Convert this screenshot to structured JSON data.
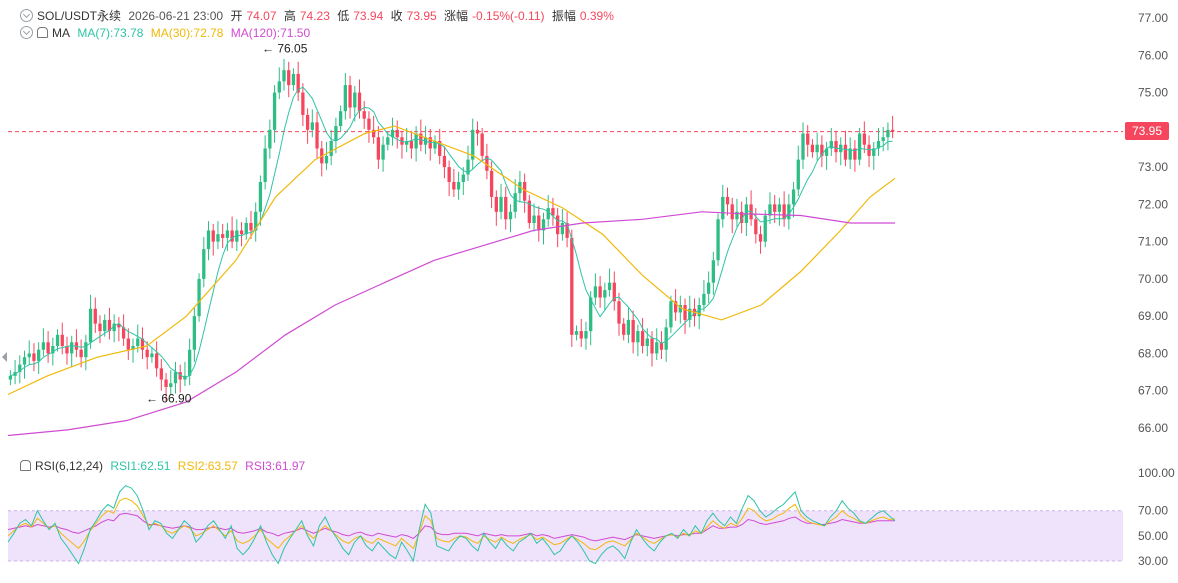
{
  "header": {
    "symbol": "SOL/USDT永续",
    "datetime": "2026-06-21 23:00",
    "open_label": "开",
    "open": "74.07",
    "high_label": "高",
    "high": "74.23",
    "low_label": "低",
    "low": "73.94",
    "close_label": "收",
    "close": "73.95",
    "change_label": "涨幅",
    "change": "-0.15%(-0.11)",
    "amplitude_label": "振幅",
    "amplitude": "0.39%"
  },
  "ma_legend": {
    "label": "MA",
    "ma7": "MA(7):73.78",
    "ma30": "MA(30):72.78",
    "ma120": "MA(120):71.50"
  },
  "rsi_legend": {
    "label": "RSI(6,12,24)",
    "rsi1": "RSI1:62.51",
    "rsi2": "RSI2:63.57",
    "rsi3": "RSI3:61.97"
  },
  "current_price": "73.95",
  "colors": {
    "up": "#2ebd85",
    "down": "#f6465d",
    "ma7": "#2ec4a6",
    "ma30": "#f0b90b",
    "ma120": "#d04bd3",
    "rsi_band": "#efe3fb"
  },
  "chart_data": {
    "type": "candlestick",
    "price_axis": {
      "ticks": [
        "77.00",
        "76.00",
        "75.00",
        "74.00",
        "73.00",
        "72.00",
        "71.00",
        "70.00",
        "69.00",
        "68.00",
        "67.00",
        "66.00"
      ],
      "range": [
        65.6,
        77.4
      ]
    },
    "annotations": [
      {
        "text": "76.05",
        "value": 76.05,
        "type": "high"
      },
      {
        "text": "66.90",
        "value": 66.9,
        "type": "low"
      }
    ],
    "closes": [
      67.4,
      67.5,
      67.7,
      67.9,
      68.0,
      67.8,
      68.1,
      68.3,
      68.0,
      68.2,
      68.5,
      68.2,
      68.0,
      68.3,
      68.1,
      67.9,
      68.3,
      69.2,
      68.8,
      68.6,
      68.9,
      68.6,
      68.8,
      68.7,
      68.4,
      68.1,
      68.2,
      68.4,
      68.1,
      67.9,
      68.0,
      67.6,
      67.3,
      67.1,
      67.2,
      67.5,
      67.3,
      67.4,
      68.1,
      69.0,
      70.0,
      70.8,
      71.3,
      71.0,
      71.2,
      71.1,
      71.3,
      71.0,
      71.3,
      71.2,
      71.5,
      71.3,
      71.8,
      72.6,
      73.5,
      74.0,
      75.0,
      75.3,
      75.6,
      75.2,
      75.5,
      75.0,
      74.4,
      74.0,
      74.2,
      73.5,
      73.1,
      73.3,
      73.7,
      74.1,
      74.5,
      75.2,
      74.6,
      75.0,
      74.5,
      74.3,
      74.0,
      73.8,
      73.2,
      73.6,
      73.8,
      74.0,
      73.8,
      73.6,
      73.7,
      73.5,
      73.9,
      73.6,
      73.8,
      73.5,
      73.7,
      73.3,
      73.0,
      72.6,
      72.4,
      72.6,
      72.8,
      73.2,
      74.0,
      73.9,
      73.3,
      72.9,
      72.2,
      71.8,
      72.2,
      71.6,
      71.8,
      72.3,
      72.6,
      72.1,
      71.5,
      71.7,
      71.3,
      71.6,
      71.9,
      71.7,
      71.2,
      71.5,
      71.1,
      68.5,
      68.6,
      68.4,
      68.6,
      69.5,
      69.8,
      69.5,
      69.7,
      69.9,
      69.4,
      68.8,
      68.5,
      68.9,
      68.3,
      68.6,
      68.2,
      68.4,
      68.0,
      68.3,
      68.1,
      68.7,
      69.4,
      69.1,
      69.3,
      68.9,
      69.2,
      69.0,
      69.3,
      69.6,
      69.9,
      70.5,
      71.6,
      72.2,
      72.0,
      71.6,
      71.8,
      71.5,
      72.0,
      71.6,
      71.2,
      71.0,
      71.7,
      72.0,
      71.8,
      72.0,
      71.6,
      72.0,
      72.4,
      73.2,
      73.9,
      73.6,
      73.4,
      73.6,
      73.3,
      73.5,
      73.7,
      73.4,
      73.6,
      73.2,
      73.5,
      73.2,
      73.9,
      73.6,
      73.3,
      73.5,
      73.7,
      73.8,
      74.0,
      73.95
    ],
    "ma30_path": [
      [
        0,
        66.9
      ],
      [
        40,
        67.4
      ],
      [
        90,
        67.9
      ],
      [
        140,
        68.2
      ],
      [
        180,
        69.0
      ],
      [
        230,
        70.5
      ],
      [
        270,
        72.2
      ],
      [
        310,
        73.2
      ],
      [
        360,
        73.9
      ],
      [
        390,
        74.1
      ],
      [
        430,
        73.7
      ],
      [
        470,
        73.3
      ],
      [
        520,
        72.4
      ],
      [
        560,
        71.9
      ],
      [
        600,
        71.2
      ],
      [
        640,
        70.1
      ],
      [
        680,
        69.2
      ],
      [
        720,
        68.9
      ],
      [
        760,
        69.3
      ],
      [
        800,
        70.2
      ],
      [
        840,
        71.3
      ],
      [
        870,
        72.2
      ],
      [
        895,
        72.7
      ]
    ],
    "ma120_path": [
      [
        0,
        65.8
      ],
      [
        60,
        65.95
      ],
      [
        120,
        66.2
      ],
      [
        180,
        66.7
      ],
      [
        230,
        67.5
      ],
      [
        280,
        68.5
      ],
      [
        330,
        69.3
      ],
      [
        380,
        69.9
      ],
      [
        430,
        70.5
      ],
      [
        480,
        70.9
      ],
      [
        530,
        71.3
      ],
      [
        580,
        71.5
      ],
      [
        640,
        71.6
      ],
      [
        700,
        71.8
      ],
      [
        740,
        71.75
      ],
      [
        800,
        71.7
      ],
      [
        850,
        71.5
      ],
      [
        895,
        71.5
      ]
    ],
    "rsi_axis": {
      "ticks": [
        "100.00",
        "70.00",
        "50.00",
        "30.00"
      ],
      "range": [
        20,
        100
      ],
      "band": [
        30,
        70
      ]
    },
    "rsi1": [
      45,
      52,
      60,
      63,
      58,
      70,
      62,
      55,
      60,
      48,
      42,
      35,
      28,
      40,
      55,
      62,
      70,
      75,
      72,
      85,
      90,
      88,
      82,
      70,
      55,
      62,
      60,
      52,
      48,
      55,
      62,
      58,
      45,
      50,
      58,
      62,
      55,
      48,
      58,
      40,
      35,
      40,
      48,
      58,
      45,
      35,
      28,
      40,
      48,
      55,
      62,
      50,
      42,
      58,
      65,
      55,
      48,
      40,
      35,
      45,
      50,
      42,
      38,
      45,
      40,
      35,
      32,
      45,
      38,
      30,
      55,
      75,
      68,
      42,
      40,
      38,
      45,
      50,
      48,
      42,
      38,
      52,
      45,
      40,
      48,
      42,
      38,
      45,
      48,
      52,
      44,
      48,
      42,
      35,
      38,
      45,
      50,
      45,
      38,
      30,
      28,
      35,
      40,
      42,
      38,
      32,
      45,
      55,
      48,
      42,
      38,
      45,
      50,
      52,
      48,
      55,
      50,
      58,
      52,
      62,
      68,
      62,
      58,
      65,
      60,
      72,
      82,
      78,
      70,
      65,
      68,
      72,
      75,
      80,
      85,
      70,
      65,
      62,
      60,
      58,
      65,
      70,
      78,
      72,
      68,
      62,
      60,
      64,
      68,
      70,
      66,
      62
    ],
    "rsi2": [
      50,
      54,
      58,
      60,
      57,
      64,
      60,
      56,
      58,
      52,
      48,
      44,
      40,
      46,
      54,
      60,
      66,
      70,
      68,
      78,
      80,
      78,
      74,
      66,
      58,
      60,
      58,
      54,
      52,
      55,
      58,
      56,
      50,
      52,
      55,
      58,
      54,
      50,
      54,
      46,
      44,
      46,
      50,
      55,
      48,
      44,
      40,
      46,
      50,
      54,
      58,
      52,
      48,
      54,
      58,
      54,
      50,
      46,
      44,
      48,
      50,
      46,
      44,
      48,
      46,
      44,
      42,
      48,
      44,
      40,
      52,
      66,
      62,
      48,
      46,
      45,
      48,
      50,
      49,
      46,
      44,
      50,
      47,
      45,
      49,
      46,
      44,
      47,
      49,
      51,
      47,
      49,
      46,
      43,
      44,
      47,
      50,
      47,
      44,
      40,
      39,
      42,
      45,
      46,
      44,
      42,
      47,
      52,
      49,
      46,
      44,
      47,
      50,
      51,
      49,
      52,
      50,
      54,
      52,
      57,
      62,
      58,
      56,
      60,
      58,
      64,
      72,
      70,
      65,
      62,
      63,
      66,
      68,
      72,
      75,
      66,
      62,
      60,
      59,
      58,
      62,
      65,
      70,
      66,
      64,
      61,
      60,
      62,
      64,
      65,
      63,
      63.5
    ],
    "rsi3": [
      55,
      56,
      57,
      58,
      57,
      59,
      58,
      57,
      58,
      56,
      55,
      53,
      52,
      54,
      56,
      58,
      61,
      63,
      62,
      67,
      68,
      67,
      66,
      62,
      59,
      59,
      58,
      57,
      56,
      57,
      58,
      57,
      55,
      55,
      56,
      57,
      56,
      55,
      56,
      53,
      52,
      53,
      54,
      56,
      53,
      52,
      50,
      52,
      53,
      54,
      56,
      54,
      52,
      54,
      56,
      54,
      53,
      51,
      50,
      52,
      53,
      51,
      50,
      52,
      51,
      50,
      49,
      51,
      50,
      48,
      52,
      58,
      57,
      52,
      51,
      51,
      52,
      52,
      52,
      51,
      50,
      52,
      51,
      50,
      51,
      50,
      50,
      50,
      51,
      52,
      50,
      51,
      50,
      48,
      49,
      50,
      51,
      50,
      49,
      47,
      46,
      47,
      48,
      49,
      48,
      47,
      49,
      51,
      50,
      49,
      48,
      49,
      50,
      51,
      50,
      51,
      51,
      52,
      52,
      55,
      58,
      56,
      56,
      57,
      57,
      59,
      63,
      62,
      60,
      59,
      60,
      61,
      62,
      64,
      65,
      62,
      60,
      60,
      59,
      59,
      60,
      61,
      63,
      62,
      61,
      60,
      60,
      61,
      62,
      62,
      62,
      62
    ]
  }
}
